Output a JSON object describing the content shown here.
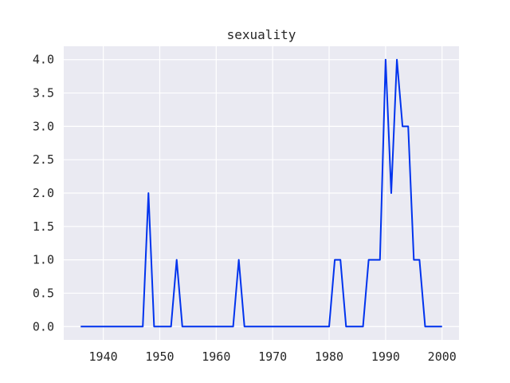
{
  "chart_data": {
    "type": "line",
    "title": "sexuality",
    "xlabel": "",
    "ylabel": "",
    "xlim": [
      1933,
      2003
    ],
    "ylim": [
      -0.2,
      4.2
    ],
    "x_ticks": [
      1940,
      1950,
      1960,
      1970,
      1980,
      1990,
      2000
    ],
    "y_ticks": [
      0.0,
      0.5,
      1.0,
      1.5,
      2.0,
      2.5,
      3.0,
      3.5,
      4.0
    ],
    "grid": true,
    "line_color": "#0033ee",
    "background_color": "#eaeaf2",
    "series": [
      {
        "x": [
          1936,
          1937,
          1938,
          1939,
          1940,
          1941,
          1942,
          1943,
          1944,
          1945,
          1946,
          1947,
          1948,
          1949,
          1950,
          1951,
          1952,
          1953,
          1954,
          1955,
          1956,
          1957,
          1958,
          1959,
          1960,
          1961,
          1962,
          1963,
          1964,
          1965,
          1966,
          1967,
          1968,
          1969,
          1970,
          1971,
          1972,
          1973,
          1974,
          1975,
          1976,
          1977,
          1978,
          1979,
          1980,
          1981,
          1982,
          1983,
          1984,
          1985,
          1986,
          1987,
          1988,
          1989,
          1990,
          1991,
          1992,
          1993,
          1994,
          1995,
          1996,
          1997,
          1998,
          1999,
          2000
        ],
        "values": [
          0,
          0,
          0,
          0,
          0,
          0,
          0,
          0,
          0,
          0,
          0,
          0,
          2,
          0,
          0,
          0,
          0,
          1,
          0,
          0,
          0,
          0,
          0,
          0,
          0,
          0,
          0,
          0,
          1,
          0,
          0,
          0,
          0,
          0,
          0,
          0,
          0,
          0,
          0,
          0,
          0,
          0,
          0,
          0,
          0,
          1,
          1,
          0,
          0,
          0,
          0,
          1,
          1,
          1,
          4,
          2,
          4,
          3,
          3,
          1,
          1,
          0,
          0,
          0,
          0
        ]
      }
    ]
  }
}
